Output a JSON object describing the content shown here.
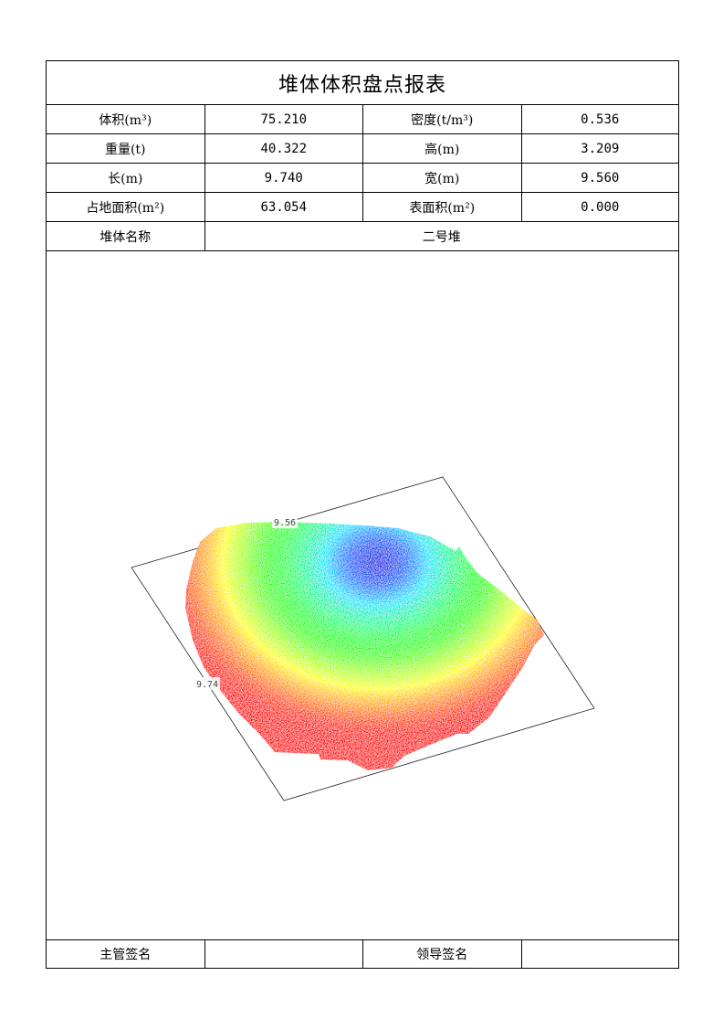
{
  "title": "堆体体积盘点报表",
  "rows": [
    {
      "label1": "体积(m³)",
      "value1": "75.210",
      "label2": "密度(t/m³)",
      "value2": "0.536"
    },
    {
      "label1": "重量(t)",
      "value1": "40.322",
      "label2": "高(m)",
      "value2": "3.209"
    },
    {
      "label1": "长(m)",
      "value1": "9.740",
      "label2": "宽(m)",
      "value2": "9.560"
    },
    {
      "label1": "占地面积(m²)",
      "value1": "63.054",
      "label2": "表面积(m²)",
      "value2": "0.000"
    }
  ],
  "pile_name_label": "堆体名称",
  "pile_name_value": "二号堆",
  "figure": {
    "width_label": "9.56",
    "length_label": "9.74",
    "colors": {
      "low": "#ff0000",
      "mid_low": "#ffff00",
      "mid": "#00ff00",
      "mid_high": "#00ffff",
      "high": "#0000ff"
    }
  },
  "signatures": {
    "supervisor_label": "主管签名",
    "supervisor_value": "",
    "leader_label": "领导签名",
    "leader_value": ""
  }
}
